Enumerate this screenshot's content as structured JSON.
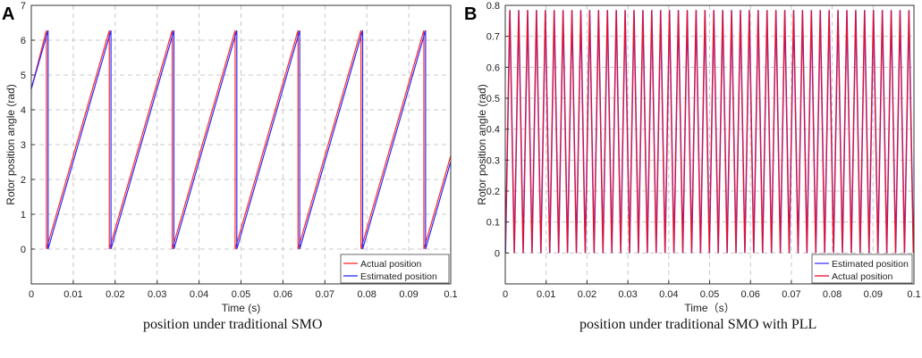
{
  "chart_data": [
    {
      "panel_label": "A",
      "type": "line",
      "xlabel": "Time (s)",
      "ylabel": "Rotor position angle (rad)",
      "xlim": [
        0,
        0.1
      ],
      "ylim": [
        -1,
        7
      ],
      "xticks": [
        0,
        0.01,
        0.02,
        0.03,
        0.04,
        0.05,
        0.06,
        0.07,
        0.08,
        0.09,
        0.1
      ],
      "xtick_labels": [
        "0",
        "0.01",
        "0.02",
        "0.03",
        "0.04",
        "0.05",
        "0.06",
        "0.07",
        "0.08",
        "0.09",
        "0.1"
      ],
      "yticks": [
        0,
        1,
        2,
        3,
        4,
        5,
        6,
        7
      ],
      "ytick_labels": [
        "0",
        "1",
        "2",
        "3",
        "4",
        "5",
        "6",
        "7"
      ],
      "grid": true,
      "legend_position": "bottom-right",
      "sawtooth": {
        "period": 0.015,
        "min": 0,
        "max": 6.28,
        "start_value": 4.6
      },
      "series": [
        {
          "name": "Actual position",
          "color": "#ff2a2a",
          "wrap_times": [
            0.0036,
            0.0186,
            0.0336,
            0.0486,
            0.0636,
            0.0786,
            0.0936
          ]
        },
        {
          "name": "Estimated position",
          "color": "#2a2aff",
          "wrap_times": [
            0.004,
            0.019,
            0.034,
            0.049,
            0.064,
            0.079,
            0.094
          ]
        }
      ],
      "legend_order": [
        "Actual position",
        "Estimated position"
      ],
      "caption": "position under traditional SMO"
    },
    {
      "panel_label": "B",
      "type": "line",
      "xlabel": "Time（s）",
      "ylabel": "Rotor position angle (rad)",
      "xlim": [
        0,
        0.1
      ],
      "ylim": [
        -0.1,
        0.8
      ],
      "xticks": [
        0,
        0.01,
        0.02,
        0.03,
        0.04,
        0.05,
        0.06,
        0.07,
        0.08,
        0.09,
        0.1
      ],
      "xtick_labels": [
        "0",
        "0.01",
        "0.02",
        "0.03",
        "0.04",
        "0.05",
        "0.06",
        "0.07",
        "0.08",
        "0.09",
        "0.1"
      ],
      "yticks": [
        0,
        0.1,
        0.2,
        0.3,
        0.4,
        0.5,
        0.6,
        0.7,
        0.8
      ],
      "ytick_labels": [
        "0",
        "0.1",
        "0.2",
        "0.3",
        "0.4",
        "0.5",
        "0.6",
        "0.7",
        "0.8"
      ],
      "grid": true,
      "legend_position": "bottom-right",
      "triangle": {
        "period": 0.00217,
        "min": 0,
        "max": 0.785
      },
      "series": [
        {
          "name": "Estimated position",
          "color": "#3a3aff",
          "phase": 8e-05
        },
        {
          "name": "Actual position",
          "color": "#e8102a",
          "phase": 0.0
        }
      ],
      "legend_order": [
        "Estimated position",
        "Actual position"
      ],
      "caption": "position under traditional SMO with PLL"
    }
  ]
}
